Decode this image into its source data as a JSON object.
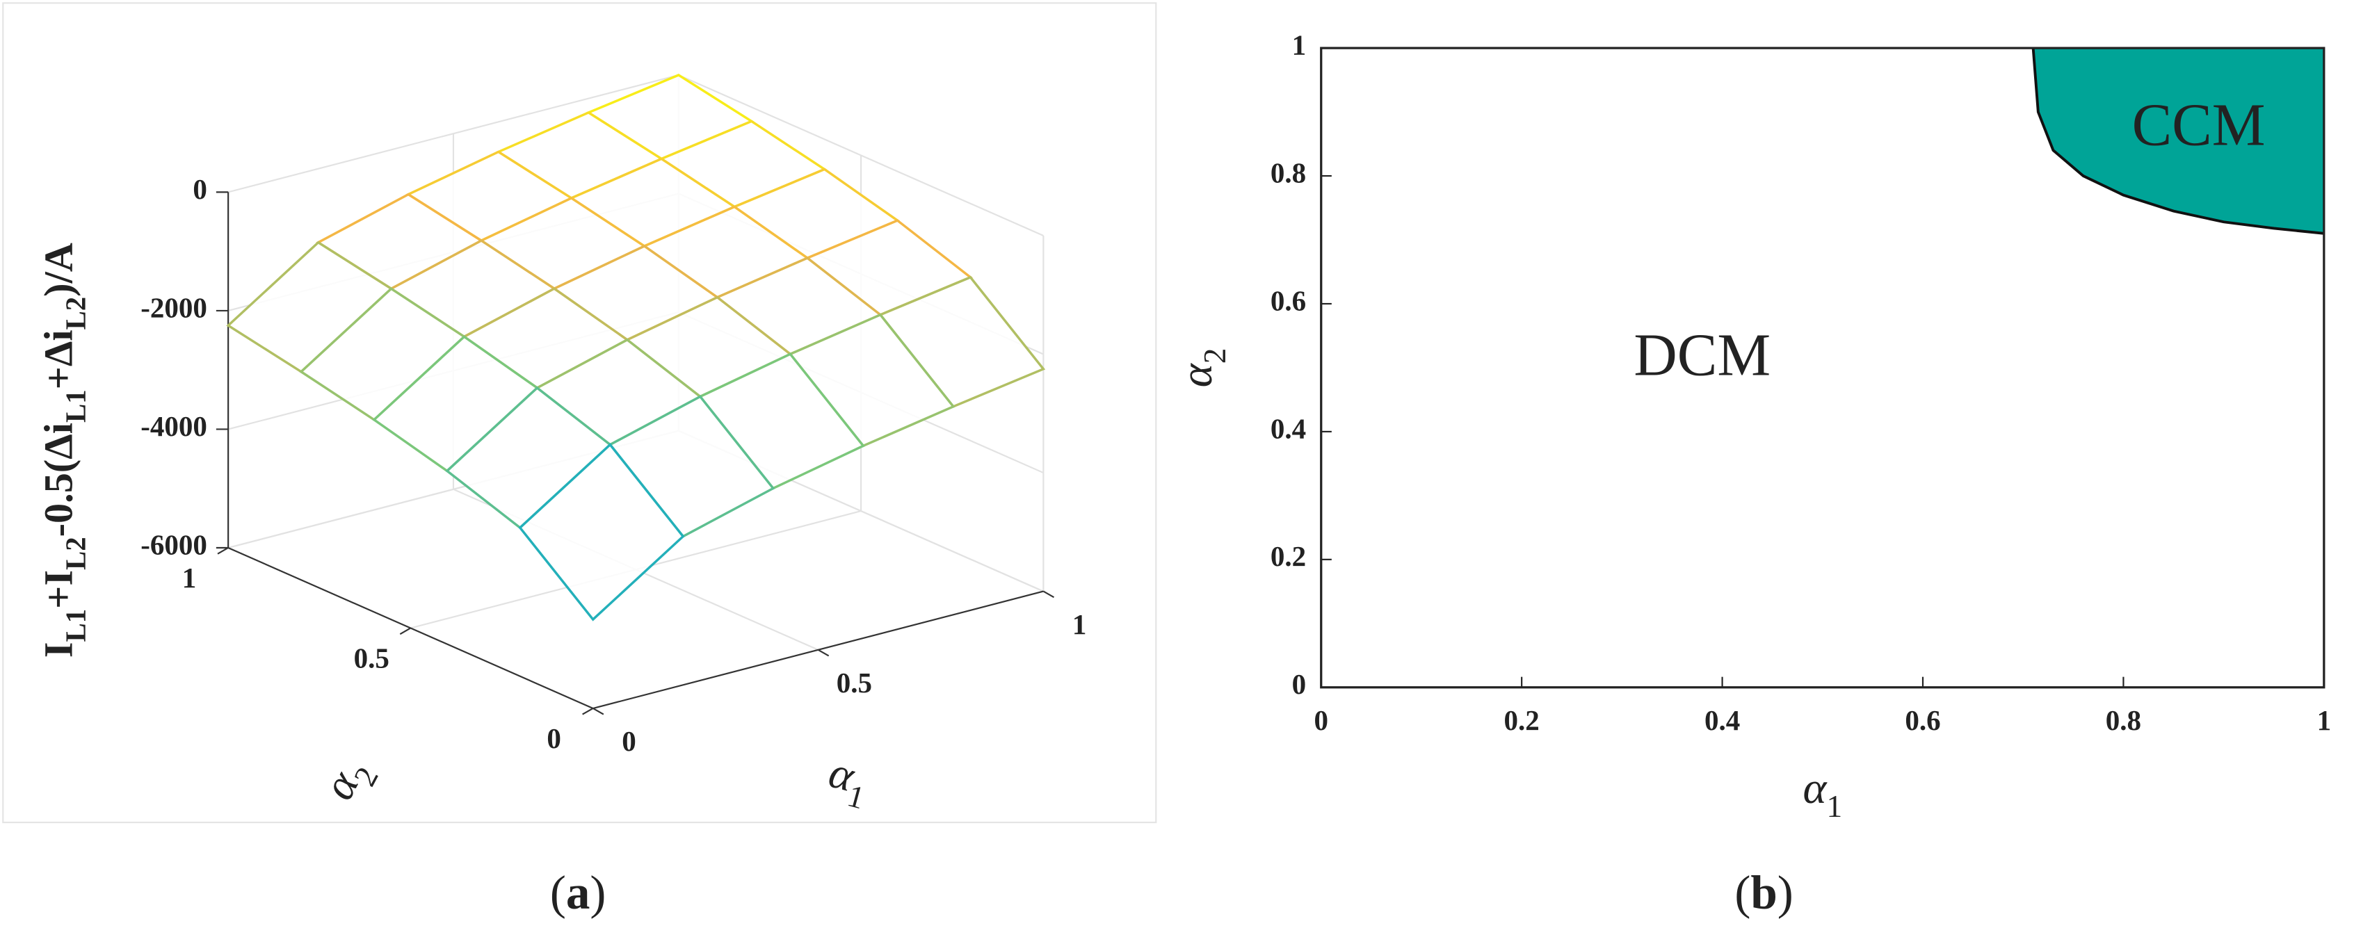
{
  "chart_data": [
    {
      "type": "surface3d",
      "zlabel": [
        {
          "text": "I"
        },
        {
          "sub": "L1"
        },
        {
          "text": "+I"
        },
        {
          "sub": "L2"
        },
        {
          "text": "-0.5(Δi"
        },
        {
          "sub": "L1"
        },
        {
          "text": "+Δi"
        },
        {
          "sub": "L2"
        },
        {
          "text": ")/A"
        }
      ],
      "xlabel": [
        {
          "text": "α"
        },
        {
          "sub": "1"
        }
      ],
      "ylabel": [
        {
          "text": "α"
        },
        {
          "sub": "2"
        }
      ],
      "x": [
        0,
        0.2,
        0.4,
        0.6,
        0.8,
        1
      ],
      "y": [
        0,
        0.2,
        0.4,
        0.6,
        0.8,
        1
      ],
      "z": [
        [
          -4500,
          -3494,
          -3078,
          -2756,
          -2488,
          -2250
        ],
        [
          -3494,
          -2488,
          -2072,
          -1750,
          -1482,
          -1244
        ],
        [
          -3078,
          -2072,
          -1656,
          -1334,
          -1066,
          -828
        ],
        [
          -2756,
          -1750,
          -1334,
          -1012,
          -744,
          -506
        ],
        [
          -2488,
          -1482,
          -1066,
          -744,
          -476,
          -238
        ],
        [
          -2250,
          -1244,
          -828,
          -506,
          -238,
          0
        ]
      ],
      "xlim": [
        0,
        1
      ],
      "ylim": [
        0,
        1
      ],
      "zlim": [
        -6000,
        0
      ],
      "xticks": [
        0,
        0.5,
        1
      ],
      "yticks": [
        0,
        0.5,
        1
      ],
      "zticks": [
        0,
        -2000,
        -4000,
        -6000
      ],
      "grid": true,
      "colormap": [
        "#352a87",
        "#0d75dc",
        "#1aaec0",
        "#7cc77a",
        "#f4b447",
        "#f9fb0e"
      ],
      "caption": [
        {
          "text": "("
        },
        {
          "bold": "a"
        },
        {
          "text": ")"
        }
      ]
    },
    {
      "type": "region",
      "xlabel": [
        {
          "text": "α"
        },
        {
          "sub": "1"
        }
      ],
      "ylabel": [
        {
          "text": "α"
        },
        {
          "sub": "2"
        }
      ],
      "boundary": {
        "x": [
          0.71,
          0.715,
          0.73,
          0.76,
          0.8,
          0.85,
          0.9,
          0.95,
          1
        ],
        "y": [
          1,
          0.9,
          0.84,
          0.8,
          0.77,
          0.745,
          0.728,
          0.718,
          0.71
        ]
      },
      "color": "#00a497",
      "annotations": [
        "CCM",
        "DCM"
      ],
      "xlim": [
        0,
        1
      ],
      "ylim": [
        0,
        1
      ],
      "xticks": [
        0,
        0.2,
        0.4,
        0.6,
        0.8,
        1
      ],
      "yticks": [
        0,
        0.2,
        0.4,
        0.6,
        0.8,
        1
      ],
      "caption": [
        {
          "text": "("
        },
        {
          "bold": "b"
        },
        {
          "text": ")"
        }
      ]
    }
  ]
}
